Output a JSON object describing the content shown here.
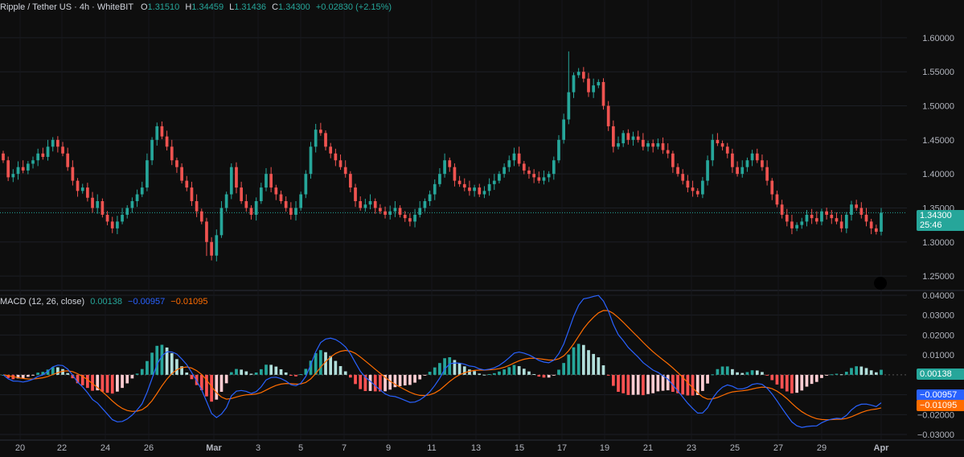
{
  "header": {
    "symbol": "Ripple / Tether US · 4h · WhiteBIT",
    "open_label": "O",
    "open": "1.31510",
    "high_label": "H",
    "high": "1.34459",
    "low_label": "L",
    "low": "1.31436",
    "close_label": "C",
    "close": "1.34300",
    "change": "+0.02830 (+2.15%)"
  },
  "macd_header": {
    "name": "MACD (12, 26, close)",
    "hist": "0.00138",
    "macd": "−0.00957",
    "signal": "−0.01095"
  },
  "price_tag": {
    "price": "1.34300",
    "countdown": "25:46"
  },
  "macd_tags": {
    "hist": "0.00138",
    "macd": "−0.00957",
    "signal": "−0.01095"
  },
  "colors": {
    "up": "#26a69a",
    "down": "#ef5350",
    "background": "#0e0e0e",
    "macd_line": "#2962ff",
    "signal_line": "#ff6d00",
    "hist_up_strong": "#26a69a",
    "hist_up_weak": "#b2dfdb",
    "hist_down_strong": "#ff5252",
    "hist_down_weak": "#ffcdd2"
  },
  "chart_data": [
    {
      "type": "candlestick",
      "title": "Ripple / Tether US · 4h · WhiteBIT",
      "interval": "4h",
      "ylim": [
        1.23,
        1.62
      ],
      "y_ticks": [
        "1.60000",
        "1.55000",
        "1.50000",
        "1.45000",
        "1.40000",
        "1.35000",
        "1.30000",
        "1.25000"
      ],
      "x_ticks": [
        "20",
        "22",
        "24",
        "26",
        "Mar",
        "3",
        "5",
        "7",
        "9",
        "11",
        "13",
        "15",
        "17",
        "19",
        "21",
        "23",
        "25",
        "27",
        "29",
        "Apr"
      ],
      "last_price": 1.343,
      "closes": [
        1.42,
        1.395,
        1.4,
        1.41,
        1.405,
        1.415,
        1.42,
        1.43,
        1.425,
        1.44,
        1.45,
        1.44,
        1.43,
        1.41,
        1.39,
        1.375,
        1.38,
        1.365,
        1.35,
        1.36,
        1.34,
        1.33,
        1.32,
        1.33,
        1.34,
        1.35,
        1.36,
        1.37,
        1.38,
        1.42,
        1.45,
        1.47,
        1.455,
        1.44,
        1.42,
        1.41,
        1.39,
        1.38,
        1.36,
        1.345,
        1.33,
        1.3,
        1.28,
        1.31,
        1.35,
        1.37,
        1.41,
        1.38,
        1.36,
        1.35,
        1.34,
        1.36,
        1.38,
        1.4,
        1.38,
        1.37,
        1.36,
        1.35,
        1.34,
        1.35,
        1.37,
        1.4,
        1.44,
        1.465,
        1.46,
        1.44,
        1.43,
        1.42,
        1.41,
        1.4,
        1.38,
        1.36,
        1.35,
        1.355,
        1.36,
        1.35,
        1.345,
        1.34,
        1.345,
        1.35,
        1.34,
        1.335,
        1.33,
        1.34,
        1.35,
        1.36,
        1.37,
        1.385,
        1.4,
        1.42,
        1.41,
        1.39,
        1.385,
        1.38,
        1.375,
        1.38,
        1.37,
        1.375,
        1.385,
        1.39,
        1.4,
        1.41,
        1.42,
        1.43,
        1.415,
        1.405,
        1.4,
        1.395,
        1.39,
        1.395,
        1.4,
        1.42,
        1.45,
        1.48,
        1.52,
        1.545,
        1.55,
        1.54,
        1.52,
        1.53,
        1.535,
        1.5,
        1.47,
        1.44,
        1.445,
        1.46,
        1.45,
        1.455,
        1.45,
        1.44,
        1.445,
        1.44,
        1.445,
        1.435,
        1.43,
        1.41,
        1.4,
        1.39,
        1.38,
        1.375,
        1.37,
        1.39,
        1.42,
        1.45,
        1.445,
        1.44,
        1.43,
        1.41,
        1.4,
        1.41,
        1.42,
        1.43,
        1.42,
        1.41,
        1.39,
        1.37,
        1.355,
        1.34,
        1.33,
        1.32,
        1.325,
        1.33,
        1.34,
        1.335,
        1.33,
        1.345,
        1.34,
        1.335,
        1.33,
        1.32,
        1.34,
        1.355,
        1.35,
        1.34,
        1.33,
        1.32,
        1.315,
        1.343
      ]
    },
    {
      "type": "line",
      "title": "MACD (12, 26, close)",
      "ylim": [
        -0.032,
        0.042
      ],
      "y_ticks": [
        "0.04000",
        "0.03000",
        "0.02000",
        "0.01000",
        "−0.01000",
        "−0.02000",
        "−0.03000"
      ],
      "series": [
        {
          "name": "MACD",
          "last": -0.00957
        },
        {
          "name": "Signal",
          "last": -0.01095
        },
        {
          "name": "Histogram",
          "last": 0.00138
        }
      ]
    }
  ]
}
